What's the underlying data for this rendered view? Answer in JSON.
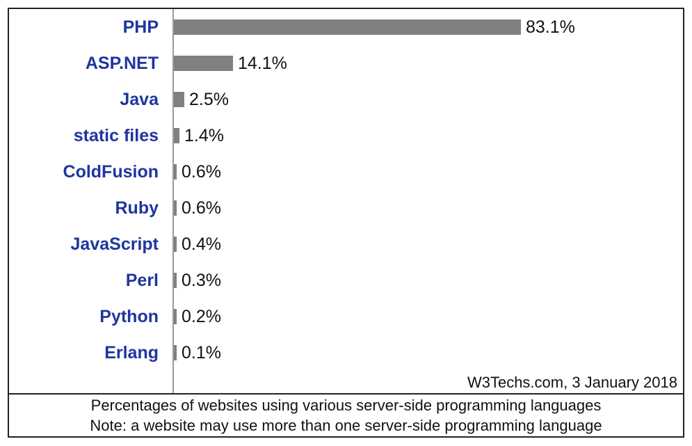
{
  "chart_data": {
    "type": "bar",
    "orientation": "horizontal",
    "categories": [
      "PHP",
      "ASP.NET",
      "Java",
      "static files",
      "ColdFusion",
      "Ruby",
      "JavaScript",
      "Perl",
      "Python",
      "Erlang"
    ],
    "values": [
      83.1,
      14.1,
      2.5,
      1.4,
      0.6,
      0.6,
      0.4,
      0.3,
      0.2,
      0.1
    ],
    "value_labels": [
      "83.1%",
      "14.1%",
      "2.5%",
      "1.4%",
      "0.6%",
      "0.6%",
      "0.4%",
      "0.3%",
      "0.2%",
      "0.1%"
    ],
    "unit": "%",
    "xlim": [
      0,
      100
    ],
    "grid": false,
    "legend": "none",
    "source": "W3Techs.com, 3 January 2018",
    "caption": [
      "Percentages of websites using various server-side programming languages",
      "Note: a website may use more than one server-side programming language"
    ]
  },
  "colors": {
    "bar": "#808080",
    "category_label": "#1f35a0",
    "text": "#111111",
    "axis": "#9a9a9a",
    "border": "#222222"
  }
}
